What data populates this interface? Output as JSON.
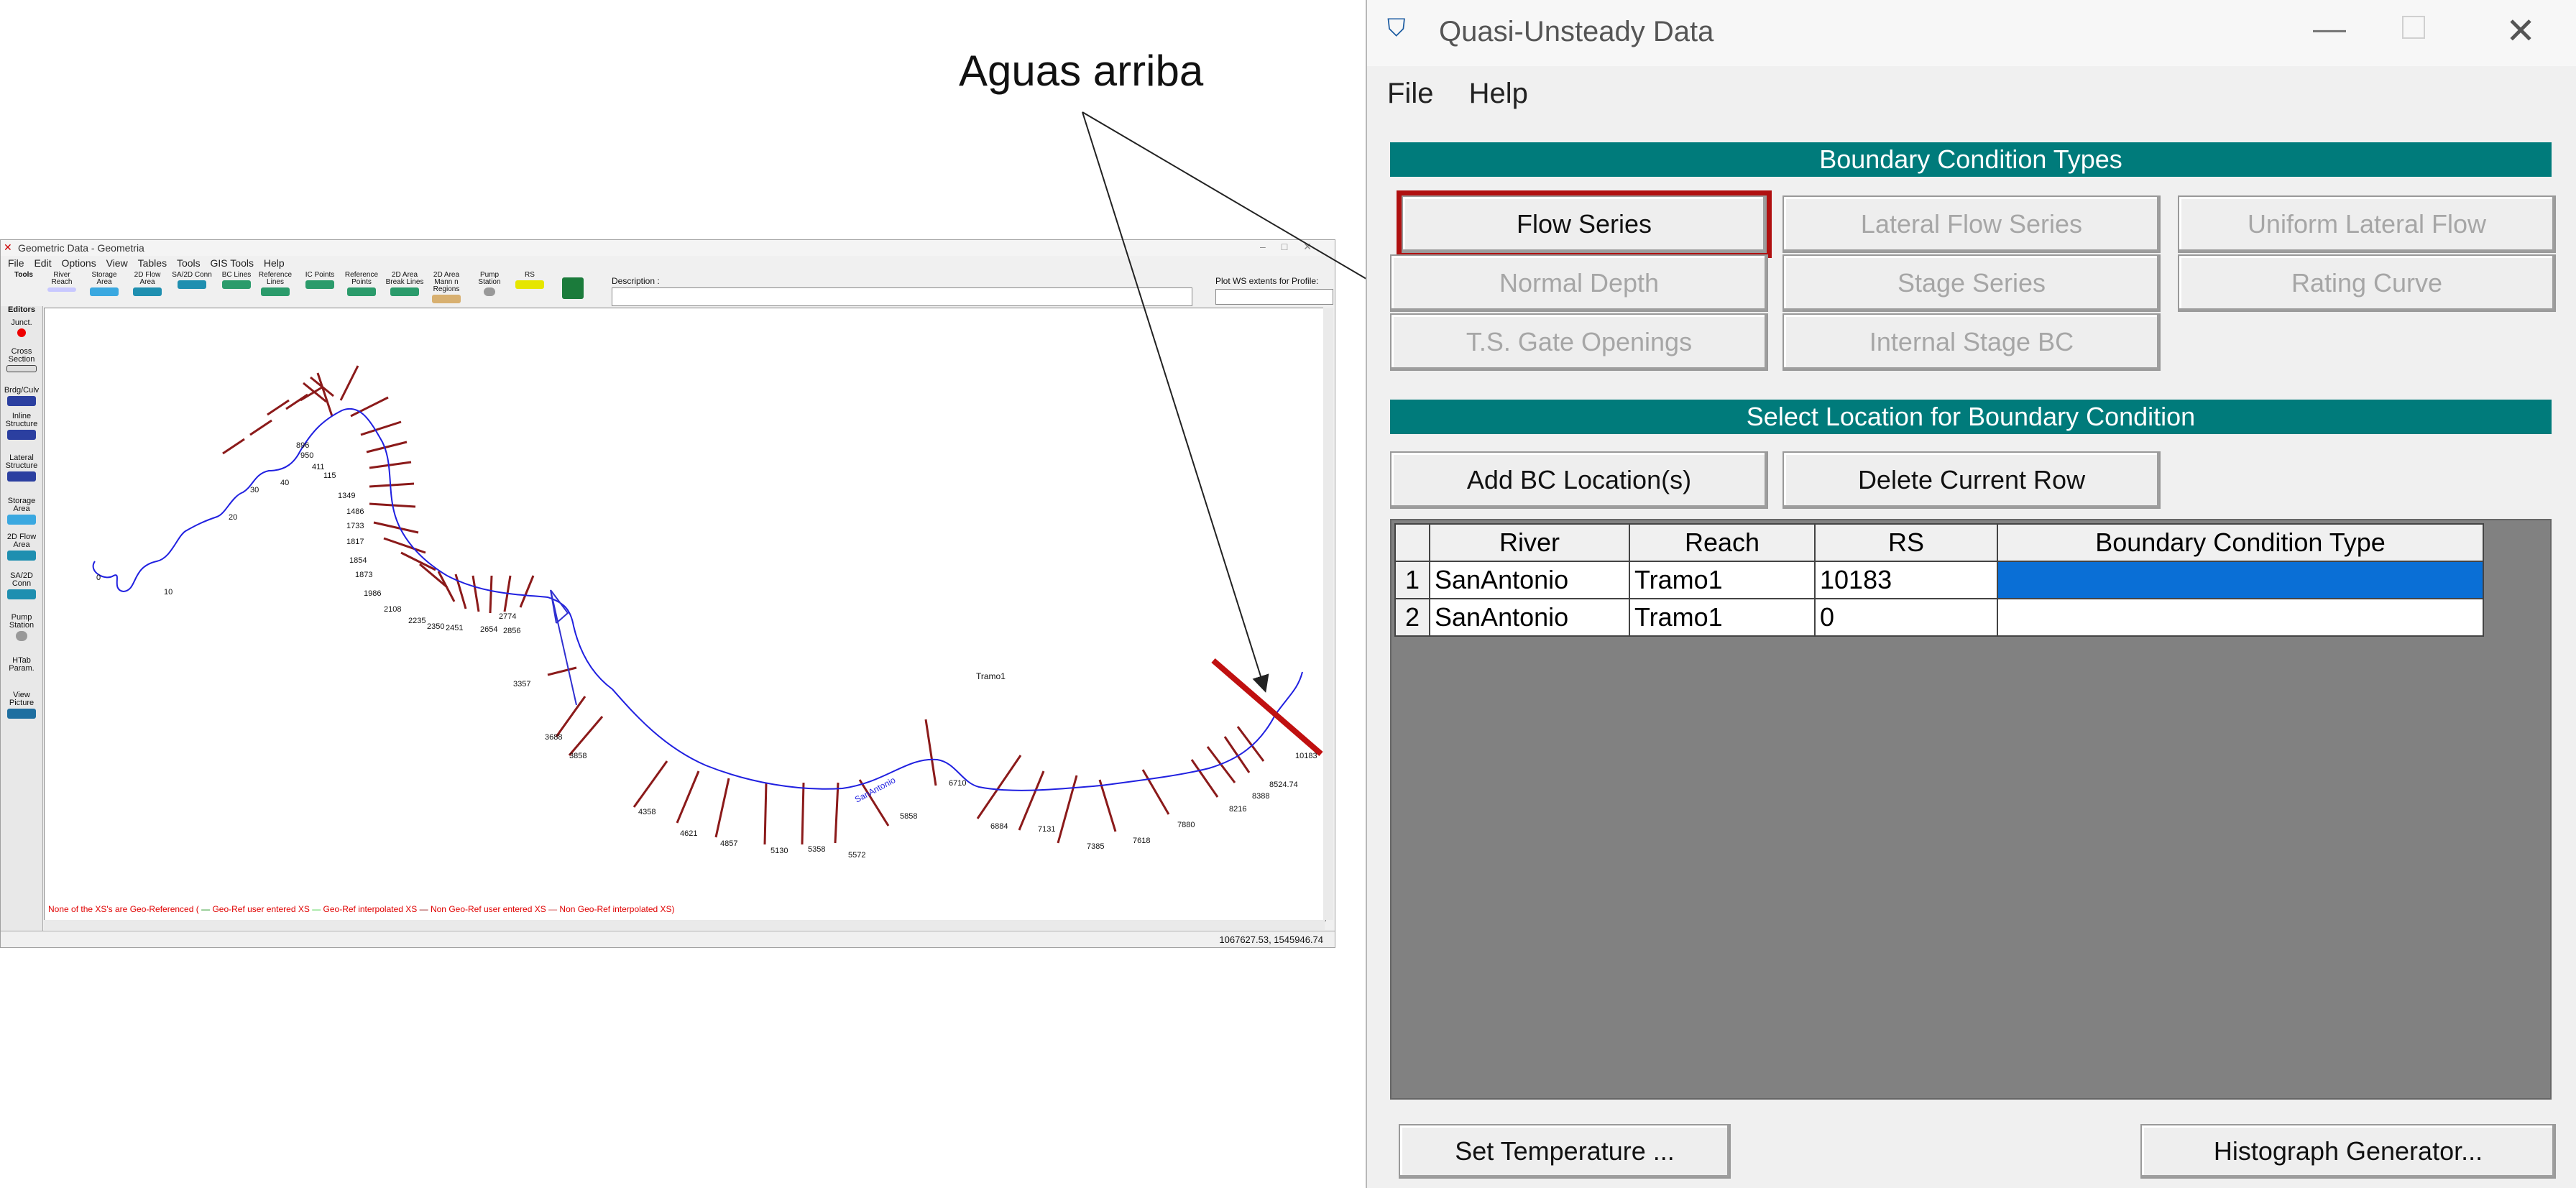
{
  "annotation": {
    "text": "Aguas arriba"
  },
  "geometric": {
    "title": "Geometric Data - Geometria",
    "menu": [
      "File",
      "Edit",
      "Options",
      "View",
      "Tables",
      "Tools",
      "GIS Tools",
      "Help"
    ],
    "toolbar": {
      "tools": "Tools",
      "items": [
        "River Reach",
        "Storage Area",
        "2D Flow Area",
        "SA/2D Conn",
        "BC Lines",
        "Reference Lines",
        "IC Points",
        "Reference Points",
        "2D Area Break Lines",
        "2D Area Mann n Regions",
        "Pump Station",
        "RS"
      ],
      "description_label": "Description :",
      "plot_ws_label": "Plot WS extents for Profile:"
    },
    "editors": {
      "label": "Editors",
      "items": [
        "Junct.",
        "Cross Section",
        "Brdg/Culv",
        "Inline Structure",
        "Lateral Structure",
        "Storage Area",
        "2D Flow Area",
        "SA/2D Conn",
        "Pump Station",
        "HTab Param.",
        "View Picture"
      ]
    },
    "reach_label": "Tramo1",
    "river_label": "SanAntonio",
    "xs_labels": [
      "0",
      "10",
      "20",
      "30",
      "40",
      "411",
      "115",
      "896",
      "950",
      "1349",
      "1486",
      "1733",
      "1817",
      "1854",
      "1873",
      "1986",
      "2108",
      "2235",
      "2350",
      "2451",
      "2654",
      "2856",
      "2774",
      "3357",
      "3688",
      "3858",
      "4358",
      "4621",
      "4857",
      "5130",
      "5358",
      "5572",
      "5858",
      "6710",
      "6884",
      "7131",
      "7385",
      "7618",
      "7880",
      "8216",
      "8388",
      "8524.74",
      "10183"
    ],
    "legend": {
      "lead": "None of the XS's are Geo-Referenced (",
      "a": "Geo-Ref user entered XS",
      "b": "Geo-Ref interpolated XS",
      "c": "Non Geo-Ref user entered XS",
      "d": "Non Geo-Ref interpolated XS)"
    },
    "coords": "1067627.53, 1545946.74"
  },
  "quasi": {
    "title": "Quasi-Unsteady Data",
    "menu": {
      "file": "File",
      "help": "Help"
    },
    "bc_types_header": "Boundary Condition Types",
    "bc_buttons": {
      "flow_series": "Flow Series",
      "lateral_flow_series": "Lateral Flow Series",
      "uniform_lateral_flow": "Uniform Lateral Flow",
      "normal_depth": "Normal Depth",
      "stage_series": "Stage Series",
      "rating_curve": "Rating Curve",
      "ts_gate": "T.S. Gate Openings",
      "internal_stage": "Internal Stage BC"
    },
    "select_header": "Select Location for Boundary Condition",
    "add_bc": "Add BC Location(s)",
    "delete_row": "Delete Current Row",
    "table": {
      "columns": [
        "River",
        "Reach",
        "RS",
        "Boundary Condition Type"
      ],
      "rows": [
        {
          "num": "1",
          "river": "SanAntonio",
          "reach": "Tramo1",
          "rs": "10183",
          "bct": ""
        },
        {
          "num": "2",
          "river": "SanAntonio",
          "reach": "Tramo1",
          "rs": "0",
          "bct": ""
        }
      ]
    },
    "set_temperature": "Set Temperature ...",
    "histograph": "Histograph Generator..."
  },
  "colors": {
    "header_teal": "#007b7b",
    "highlight_red": "#b01010",
    "selected_cell": "#0a6fd6",
    "river_line": "#2020e0"
  }
}
